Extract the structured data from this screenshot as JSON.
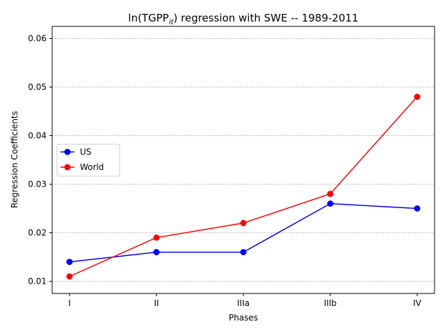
{
  "chart_data": {
    "type": "line",
    "title": {
      "prefix": "ln(TGPP",
      "subscript": "it",
      "suffix": ") regression with SWE -- 1989-2011"
    },
    "xlabel": "Phases",
    "ylabel": "Regression Coefficients",
    "categories": [
      "I",
      "II",
      "IIIa",
      "IIIb",
      "IV"
    ],
    "ylim": [
      0.0075,
      0.0625
    ],
    "yticks": [
      0.01,
      0.02,
      0.03,
      0.04,
      0.05,
      0.06
    ],
    "ytick_labels": [
      "0.01",
      "0.02",
      "0.03",
      "0.04",
      "0.05",
      "0.06"
    ],
    "grid": "horizontal dashed",
    "legend": "center-left",
    "series": [
      {
        "name": "US",
        "color": "#0000ff",
        "values": [
          0.014,
          0.016,
          0.016,
          0.026,
          0.025
        ]
      },
      {
        "name": "World",
        "color": "#ff0000",
        "values": [
          0.011,
          0.019,
          0.022,
          0.028,
          0.048
        ]
      }
    ]
  }
}
